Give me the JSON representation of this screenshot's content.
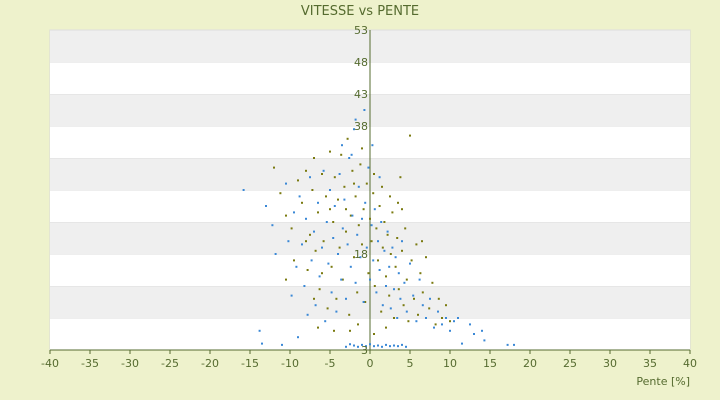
{
  "chart_data": {
    "type": "scatter",
    "title": "VITESSE vs PENTE",
    "xlabel": "Pente [%]",
    "ylabel": "",
    "xlim": [
      -40,
      40
    ],
    "ylim": [
      3,
      53
    ],
    "x_ticks": [
      -40,
      -35,
      -30,
      -25,
      -20,
      -15,
      -10,
      -5,
      0,
      5,
      10,
      15,
      20,
      25,
      30,
      35,
      40
    ],
    "y_ticks": [
      3,
      8,
      13,
      18,
      23,
      28,
      33,
      38,
      43,
      48,
      53
    ],
    "y_tick_labels": [
      "3",
      "",
      "",
      "18",
      "",
      "",
      "",
      "38",
      "43",
      "48",
      "53"
    ],
    "grid": "horizontal alternating bands",
    "legend": "none",
    "series": [
      {
        "color": "#7a7a10",
        "points": [
          [
            -12.0,
            31.5
          ],
          [
            -11.2,
            27.5
          ],
          [
            -10.5,
            24.0
          ],
          [
            -9.8,
            22.0
          ],
          [
            -9.0,
            29.5
          ],
          [
            -8.5,
            26.0
          ],
          [
            -8.0,
            31.0
          ],
          [
            -7.8,
            15.5
          ],
          [
            -7.5,
            21.0
          ],
          [
            -7.2,
            28.0
          ],
          [
            -7.0,
            33.0
          ],
          [
            -6.8,
            18.5
          ],
          [
            -6.5,
            24.5
          ],
          [
            -6.3,
            12.5
          ],
          [
            -6.0,
            30.5
          ],
          [
            -5.8,
            20.0
          ],
          [
            -5.5,
            27.0
          ],
          [
            -5.3,
            9.5
          ],
          [
            -5.0,
            34.0
          ],
          [
            -4.8,
            16.0
          ],
          [
            -4.6,
            23.0
          ],
          [
            -4.4,
            30.0
          ],
          [
            -4.2,
            11.0
          ],
          [
            -4.0,
            26.5
          ],
          [
            -3.8,
            19.0
          ],
          [
            -3.6,
            33.5
          ],
          [
            -3.4,
            14.0
          ],
          [
            -3.2,
            28.5
          ],
          [
            -3.0,
            21.5
          ],
          [
            -2.8,
            36.0
          ],
          [
            -2.6,
            8.5
          ],
          [
            -2.4,
            24.0
          ],
          [
            -2.2,
            31.0
          ],
          [
            -2.0,
            17.5
          ],
          [
            -1.8,
            27.0
          ],
          [
            -1.6,
            12.0
          ],
          [
            -1.4,
            22.5
          ],
          [
            -1.2,
            32.0
          ],
          [
            -1.0,
            19.5
          ],
          [
            -0.8,
            25.0
          ],
          [
            -0.6,
            10.5
          ],
          [
            -0.4,
            29.0
          ],
          [
            -0.2,
            15.0
          ],
          [
            0.0,
            23.5
          ],
          [
            0.2,
            20.0
          ],
          [
            0.4,
            27.5
          ],
          [
            0.6,
            13.0
          ],
          [
            0.8,
            22.0
          ],
          [
            1.0,
            17.0
          ],
          [
            1.2,
            25.5
          ],
          [
            1.4,
            9.0
          ],
          [
            1.6,
            19.0
          ],
          [
            1.8,
            23.0
          ],
          [
            2.0,
            14.5
          ],
          [
            2.2,
            21.0
          ],
          [
            2.4,
            11.5
          ],
          [
            2.6,
            18.0
          ],
          [
            2.8,
            24.5
          ],
          [
            3.0,
            8.0
          ],
          [
            3.2,
            16.0
          ],
          [
            3.4,
            20.5
          ],
          [
            3.6,
            12.5
          ],
          [
            3.8,
            30.0
          ],
          [
            4.0,
            18.5
          ],
          [
            4.2,
            10.0
          ],
          [
            4.4,
            22.0
          ],
          [
            4.6,
            14.0
          ],
          [
            4.8,
            7.5
          ],
          [
            5.0,
            36.5
          ],
          [
            5.2,
            17.0
          ],
          [
            5.5,
            11.0
          ],
          [
            5.8,
            19.5
          ],
          [
            6.0,
            8.5
          ],
          [
            6.3,
            15.0
          ],
          [
            6.6,
            12.0
          ],
          [
            7.0,
            17.5
          ],
          [
            7.4,
            9.5
          ],
          [
            7.8,
            13.5
          ],
          [
            8.2,
            7.0
          ],
          [
            8.6,
            11.0
          ],
          [
            9.0,
            8.0
          ],
          [
            9.5,
            10.0
          ],
          [
            10.0,
            7.5
          ],
          [
            -1.0,
            34.5
          ],
          [
            -2.0,
            29.0
          ],
          [
            0.5,
            30.5
          ],
          [
            1.5,
            28.5
          ],
          [
            -3.0,
            25.0
          ],
          [
            -5.0,
            25.0
          ],
          [
            2.5,
            27.0
          ],
          [
            3.5,
            26.0
          ],
          [
            -4.0,
            18.0
          ],
          [
            -6.0,
            15.0
          ],
          [
            4.0,
            25.0
          ],
          [
            -8.0,
            20.0
          ],
          [
            -9.5,
            17.0
          ],
          [
            6.5,
            20.0
          ],
          [
            -10.5,
            14.0
          ],
          [
            -7.0,
            11.0
          ],
          [
            -2.5,
            6.0
          ],
          [
            0.5,
            5.5
          ],
          [
            2.0,
            6.5
          ],
          [
            -1.5,
            7.0
          ],
          [
            -4.5,
            6.0
          ],
          [
            -6.5,
            6.5
          ]
        ]
      },
      {
        "color": "#3a88d6",
        "points": [
          [
            -15.8,
            28.0
          ],
          [
            -13.8,
            6.0
          ],
          [
            -13.5,
            4.0
          ],
          [
            -13.0,
            25.5
          ],
          [
            -12.2,
            22.5
          ],
          [
            -11.8,
            18.0
          ],
          [
            -11.0,
            3.8
          ],
          [
            -10.5,
            29.0
          ],
          [
            -10.2,
            20.0
          ],
          [
            -9.8,
            11.5
          ],
          [
            -9.5,
            24.5
          ],
          [
            -9.2,
            16.0
          ],
          [
            -9.0,
            5.0
          ],
          [
            -8.8,
            27.0
          ],
          [
            -8.5,
            19.5
          ],
          [
            -8.2,
            13.0
          ],
          [
            -8.0,
            23.5
          ],
          [
            -7.8,
            8.5
          ],
          [
            -7.5,
            30.0
          ],
          [
            -7.3,
            17.0
          ],
          [
            -7.0,
            21.5
          ],
          [
            -6.8,
            10.0
          ],
          [
            -6.5,
            26.0
          ],
          [
            -6.3,
            14.5
          ],
          [
            -6.0,
            19.0
          ],
          [
            -5.8,
            31.0
          ],
          [
            -5.6,
            7.5
          ],
          [
            -5.4,
            23.0
          ],
          [
            -5.2,
            16.5
          ],
          [
            -5.0,
            28.0
          ],
          [
            -4.8,
            12.0
          ],
          [
            -4.6,
            20.5
          ],
          [
            -4.4,
            25.5
          ],
          [
            -4.2,
            9.0
          ],
          [
            -4.0,
            18.0
          ],
          [
            -3.8,
            30.5
          ],
          [
            -3.6,
            14.0
          ],
          [
            -3.4,
            22.0
          ],
          [
            -3.2,
            26.5
          ],
          [
            -3.0,
            11.0
          ],
          [
            -2.8,
            19.5
          ],
          [
            -2.6,
            33.0
          ],
          [
            -2.4,
            16.0
          ],
          [
            -2.2,
            24.0
          ],
          [
            -2.0,
            37.5
          ],
          [
            -1.8,
            13.5
          ],
          [
            -1.6,
            21.0
          ],
          [
            -1.4,
            28.5
          ],
          [
            -1.2,
            17.5
          ],
          [
            -1.0,
            23.5
          ],
          [
            -0.8,
            10.5
          ],
          [
            -0.6,
            26.0
          ],
          [
            -0.4,
            19.0
          ],
          [
            -0.2,
            31.5
          ],
          [
            0.0,
            14.0
          ],
          [
            0.2,
            22.5
          ],
          [
            0.4,
            17.0
          ],
          [
            0.6,
            25.0
          ],
          [
            0.8,
            12.0
          ],
          [
            1.0,
            20.0
          ],
          [
            1.2,
            15.5
          ],
          [
            1.4,
            23.0
          ],
          [
            1.6,
            10.0
          ],
          [
            1.8,
            18.5
          ],
          [
            2.0,
            13.0
          ],
          [
            2.2,
            21.5
          ],
          [
            2.4,
            16.0
          ],
          [
            2.6,
            9.5
          ],
          [
            2.8,
            19.0
          ],
          [
            3.0,
            12.5
          ],
          [
            3.2,
            17.5
          ],
          [
            3.4,
            8.0
          ],
          [
            3.6,
            15.0
          ],
          [
            3.8,
            11.0
          ],
          [
            4.0,
            20.0
          ],
          [
            4.3,
            13.5
          ],
          [
            4.6,
            9.0
          ],
          [
            5.0,
            16.5
          ],
          [
            5.4,
            11.5
          ],
          [
            5.8,
            7.5
          ],
          [
            6.2,
            14.0
          ],
          [
            6.6,
            10.0
          ],
          [
            7.0,
            8.0
          ],
          [
            7.5,
            11.0
          ],
          [
            8.0,
            6.5
          ],
          [
            8.5,
            9.0
          ],
          [
            9.0,
            7.0
          ],
          [
            9.5,
            8.0
          ],
          [
            10.0,
            6.0
          ],
          [
            10.5,
            7.5
          ],
          [
            11.0,
            8.0
          ],
          [
            11.5,
            4.0
          ],
          [
            12.5,
            7.0
          ],
          [
            13.0,
            5.5
          ],
          [
            14.0,
            6.0
          ],
          [
            14.3,
            4.5
          ],
          [
            17.2,
            3.8
          ],
          [
            18.0,
            3.8
          ],
          [
            -1.5,
            3.5
          ],
          [
            -1.0,
            3.8
          ],
          [
            -0.5,
            3.6
          ],
          [
            0.0,
            3.9
          ],
          [
            0.5,
            3.6
          ],
          [
            1.0,
            3.7
          ],
          [
            1.5,
            3.5
          ],
          [
            2.0,
            3.8
          ],
          [
            2.5,
            3.6
          ],
          [
            3.0,
            3.7
          ],
          [
            3.5,
            3.6
          ],
          [
            4.0,
            3.8
          ],
          [
            4.5,
            3.5
          ],
          [
            -2.0,
            3.7
          ],
          [
            -2.5,
            3.9
          ],
          [
            -3.0,
            3.5
          ],
          [
            -0.7,
            40.5
          ],
          [
            -1.8,
            39.0
          ],
          [
            -2.3,
            33.5
          ],
          [
            0.3,
            35.0
          ],
          [
            -3.5,
            35.0
          ],
          [
            1.2,
            30.0
          ]
        ]
      }
    ]
  }
}
